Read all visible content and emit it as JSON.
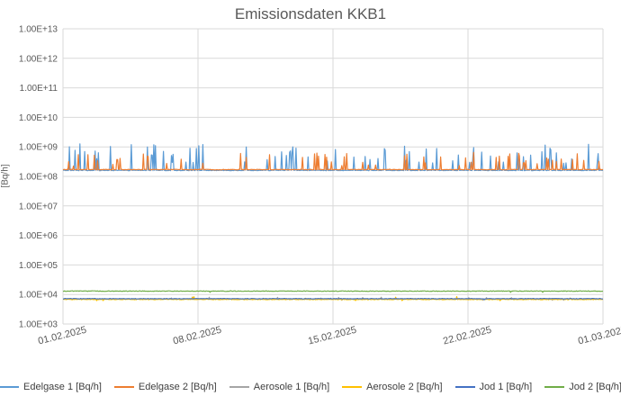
{
  "chart_data": {
    "type": "line",
    "title": "Emissionsdaten KKB1",
    "xlabel": "",
    "ylabel": "[Bq/h]",
    "yscale": "log",
    "ylim": [
      1000,
      10000000000000
    ],
    "yticks": [
      "1.00E+03",
      "1.00E+04",
      "1.00E+05",
      "1.00E+06",
      "1.00E+07",
      "1.00E+08",
      "1.00E+09",
      "1.00E+10",
      "1.00E+11",
      "1.00E+12",
      "1.00E+13"
    ],
    "xlim": [
      "01.02.2025",
      "01.03.2025"
    ],
    "xticks": [
      "01.02.2025",
      "08.02.2025",
      "15.02.2025",
      "22.02.2025",
      "01.03.2025"
    ],
    "grid": true,
    "legend_position": "bottom",
    "series": [
      {
        "name": "Edelgase 1 [Bq/h]",
        "color": "#5b9bd5",
        "baseline": 160000000,
        "spike_max": 1300000000
      },
      {
        "name": "Edelgase 2 [Bq/h]",
        "color": "#ed7d31",
        "baseline": 170000000,
        "spike_max": 650000000
      },
      {
        "name": "Aerosole 1 [Bq/h]",
        "color": "#a5a5a5",
        "baseline": 7000,
        "spike_max": 9500
      },
      {
        "name": "Aerosole 2 [Bq/h]",
        "color": "#ffc000",
        "baseline": 6800,
        "spike_max": 9500
      },
      {
        "name": "Jod 1 [Bq/h]",
        "color": "#4472c4",
        "baseline": 7200,
        "spike_max": 8000
      },
      {
        "name": "Jod 2 [Bq/h]",
        "color": "#70ad47",
        "baseline": 13000,
        "spike_max": 14000
      }
    ]
  }
}
